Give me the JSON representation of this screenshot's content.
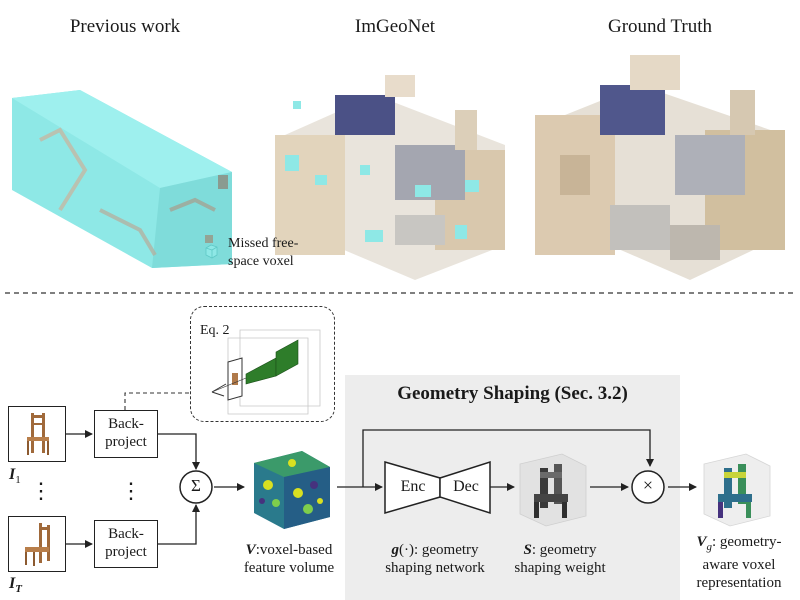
{
  "top": {
    "panel_titles": [
      "Previous work",
      "ImGeoNet",
      "Ground Truth"
    ],
    "legend_line1": "Missed free-",
    "legend_line2": "space voxel"
  },
  "pipeline": {
    "eq_label": "Eq. 2",
    "input_first": "I",
    "input_first_sub": "1",
    "input_last": "I",
    "input_last_sub": "T",
    "dots": "⋮",
    "backproject_line1": "Back-",
    "backproject_line2": "project",
    "sum_symbol": "Σ",
    "times_symbol": "×",
    "v_label_bold": "V",
    "v_label_rest": ":voxel-based",
    "v_label_line2": "feature volume",
    "gs_title": "Geometry Shaping (Sec. 3.2)",
    "enc_label": "Enc",
    "dec_label": "Dec",
    "g_label_bold": "g",
    "g_label_rest": "(·): geometry",
    "g_label_line2": "shaping network",
    "s_label_bold": "S",
    "s_label_rest": ": geometry",
    "s_label_line2": "shaping weight",
    "vg_label_bold": "V",
    "vg_label_sub": "g",
    "vg_label_rest": ": geometry-",
    "vg_label_line2": "aware voxel",
    "vg_label_line3": "representation"
  },
  "colors": {
    "missed_voxel": "#8ee8e6",
    "gs_panel": "#ededed",
    "voxel_green": "#2e7d2a"
  }
}
